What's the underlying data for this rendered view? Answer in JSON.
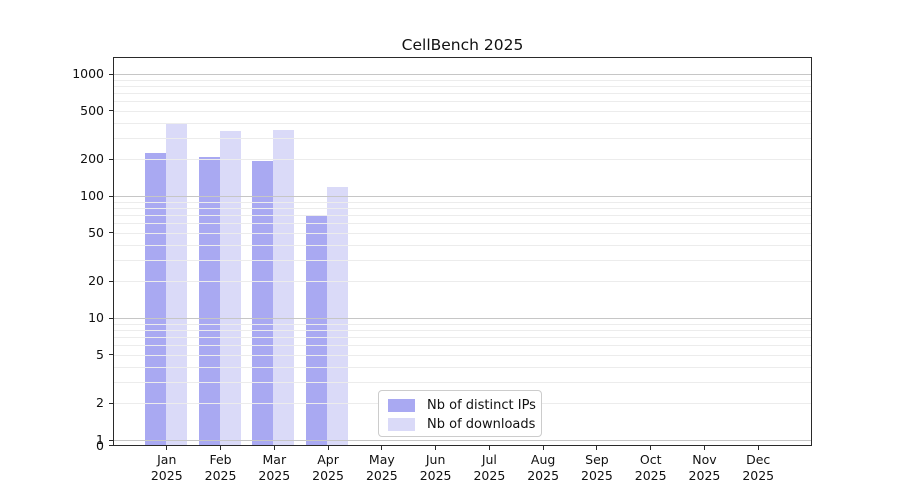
{
  "figure_title": "CellBench 2025",
  "chart_data": {
    "type": "bar",
    "title": "CellBench 2025",
    "xlabel": "",
    "ylabel": "",
    "year": "2025",
    "months": [
      "Jan",
      "Feb",
      "Mar",
      "Apr",
      "May",
      "Jun",
      "Jul",
      "Aug",
      "Sep",
      "Oct",
      "Nov",
      "Dec"
    ],
    "series": [
      {
        "name": "Nb of distinct IPs",
        "color": "#a9a9f2",
        "values": [
          227,
          210,
          195,
          70,
          0,
          0,
          0,
          0,
          0,
          0,
          0,
          0
        ]
      },
      {
        "name": "Nb of downloads",
        "color": "#dadaf8",
        "values": [
          390,
          340,
          345,
          119,
          0,
          0,
          0,
          0,
          0,
          0,
          0,
          0
        ]
      }
    ],
    "yscale": "symlog",
    "yticks": [
      0,
      1,
      2,
      5,
      10,
      20,
      50,
      100,
      200,
      500,
      1000
    ],
    "ytick_labels": [
      "0",
      "1",
      "2",
      "5",
      "10",
      "20",
      "50",
      "100",
      "200",
      "500",
      "1000"
    ],
    "ylim": [
      0,
      1380
    ],
    "grid": "horizontal major and minor gridlines, drawn above bars",
    "legend_position": "inside plot, lower center",
    "legend_labels": [
      "Nb of distinct IPs",
      "Nb of downloads"
    ]
  }
}
